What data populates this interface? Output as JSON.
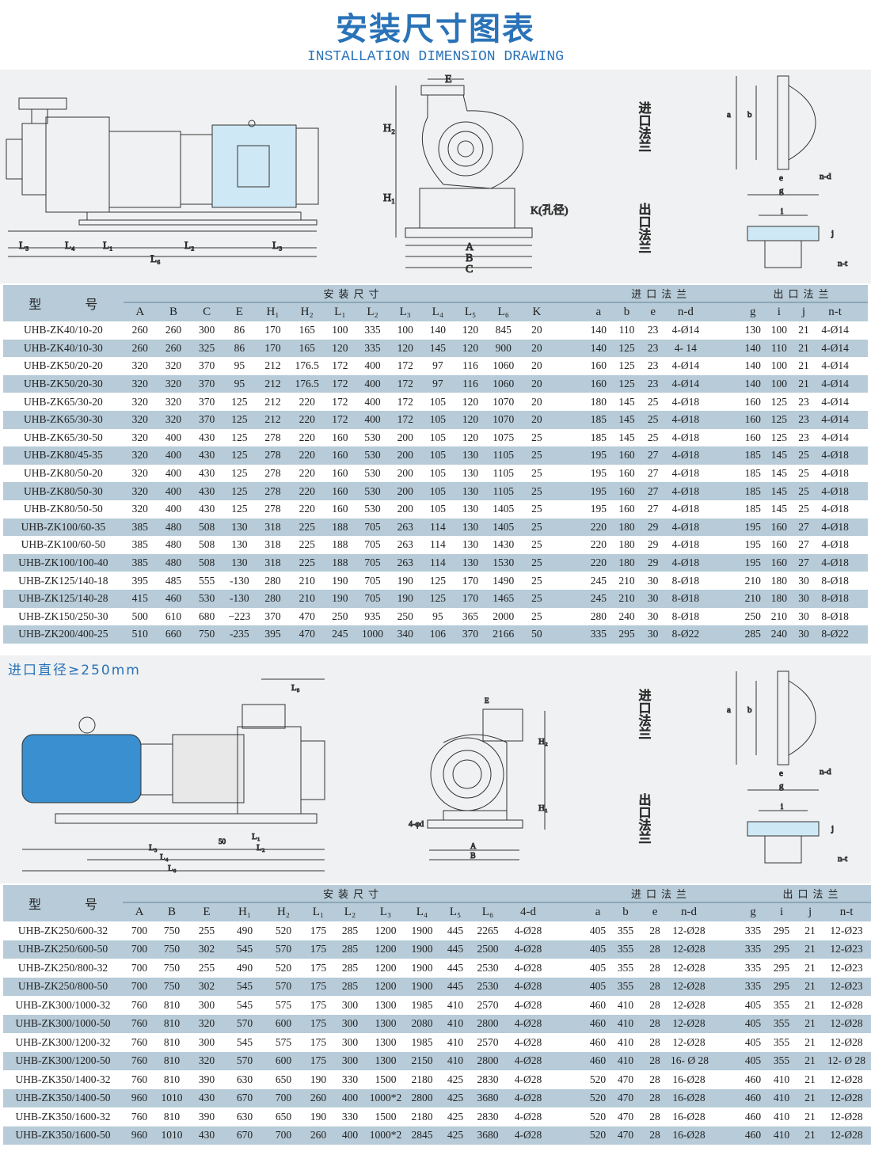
{
  "header": {
    "title": "安装尺寸图表",
    "subtitle": "INSTALLATION DIMENSION DRAWING"
  },
  "drawing1": {
    "labels": {
      "E": "E",
      "H2": "H₂",
      "H1": "H₁",
      "K": "K(孔径)",
      "A": "A",
      "B": "B",
      "C": "C",
      "L5": "L₅",
      "L4": "L₄",
      "L1": "L₁",
      "L2": "L₂",
      "L3": "L₃",
      "L6": "L₆",
      "inlet": "进口法兰",
      "outlet": "出口法兰",
      "a": "a",
      "b": "b",
      "e": "e",
      "nd": "n-d",
      "g": "g",
      "i": "i",
      "j": "j",
      "nt": "n-t"
    }
  },
  "section2_label": "进口直径≥250mm",
  "drawing2": {
    "labels": {
      "L5": "L₅",
      "E": "E",
      "H2": "H₂",
      "H1": "H₁",
      "d": "4-φd",
      "A": "A",
      "B": "B",
      "L1": "L₁",
      "L2": "L₂",
      "L3": "L₃",
      "L4": "L₄",
      "L6": "L₆",
      "h50": "50",
      "inlet": "进口法兰",
      "outlet": "出口法兰",
      "a": "a",
      "b": "b",
      "e": "e",
      "nd": "n-d",
      "g": "g",
      "i": "i",
      "j": "j",
      "nt": "n-t"
    }
  },
  "table1": {
    "model_header": "型 号",
    "install_header": "安装尺寸",
    "inlet_header": "进口法兰",
    "outlet_header": "出口法兰",
    "install_cols": [
      "A",
      "B",
      "C",
      "E",
      "H₁",
      "H₂",
      "L₁",
      "L₂",
      "L₃",
      "L₄",
      "L₅",
      "L₆",
      "K"
    ],
    "inlet_cols": [
      "a",
      "b",
      "e",
      "n-d"
    ],
    "outlet_cols": [
      "g",
      "i",
      "j",
      "n-t"
    ],
    "rows": [
      [
        "UHB-ZK40/10-20",
        "260",
        "260",
        "300",
        "86",
        "170",
        "165",
        "100",
        "335",
        "100",
        "140",
        "120",
        "845",
        "20",
        "140",
        "110",
        "23",
        "4-Ø14",
        "130",
        "100",
        "21",
        "4-Ø14"
      ],
      [
        "UHB-ZK40/10-30",
        "260",
        "260",
        "325",
        "86",
        "170",
        "165",
        "120",
        "335",
        "120",
        "145",
        "120",
        "900",
        "20",
        "140",
        "125",
        "23",
        "4-  14",
        "140",
        "110",
        "21",
        "4-Ø14"
      ],
      [
        "UHB-ZK50/20-20",
        "320",
        "320",
        "370",
        "95",
        "212",
        "176.5",
        "172",
        "400",
        "172",
        "97",
        "116",
        "1060",
        "20",
        "160",
        "125",
        "23",
        "4-Ø14",
        "140",
        "100",
        "21",
        "4-Ø14"
      ],
      [
        "UHB-ZK50/20-30",
        "320",
        "320",
        "370",
        "95",
        "212",
        "176.5",
        "172",
        "400",
        "172",
        "97",
        "116",
        "1060",
        "20",
        "160",
        "125",
        "23",
        "4-Ø14",
        "140",
        "100",
        "21",
        "4-Ø14"
      ],
      [
        "UHB-ZK65/30-20",
        "320",
        "320",
        "370",
        "125",
        "212",
        "220",
        "172",
        "400",
        "172",
        "105",
        "120",
        "1070",
        "20",
        "180",
        "145",
        "25",
        "4-Ø18",
        "160",
        "125",
        "23",
        "4-Ø14"
      ],
      [
        "UHB-ZK65/30-30",
        "320",
        "320",
        "370",
        "125",
        "212",
        "220",
        "172",
        "400",
        "172",
        "105",
        "120",
        "1070",
        "20",
        "185",
        "145",
        "25",
        "4-Ø18",
        "160",
        "125",
        "23",
        "4-Ø14"
      ],
      [
        "UHB-ZK65/30-50",
        "320",
        "400",
        "430",
        "125",
        "278",
        "220",
        "160",
        "530",
        "200",
        "105",
        "120",
        "1075",
        "25",
        "185",
        "145",
        "25",
        "4-Ø18",
        "160",
        "125",
        "23",
        "4-Ø14"
      ],
      [
        "UHB-ZK80/45-35",
        "320",
        "400",
        "430",
        "125",
        "278",
        "220",
        "160",
        "530",
        "200",
        "105",
        "130",
        "1105",
        "25",
        "195",
        "160",
        "27",
        "4-Ø18",
        "185",
        "145",
        "25",
        "4-Ø18"
      ],
      [
        "UHB-ZK80/50-20",
        "320",
        "400",
        "430",
        "125",
        "278",
        "220",
        "160",
        "530",
        "200",
        "105",
        "130",
        "1105",
        "25",
        "195",
        "160",
        "27",
        "4-Ø18",
        "185",
        "145",
        "25",
        "4-Ø18"
      ],
      [
        "UHB-ZK80/50-30",
        "320",
        "400",
        "430",
        "125",
        "278",
        "220",
        "160",
        "530",
        "200",
        "105",
        "130",
        "1105",
        "25",
        "195",
        "160",
        "27",
        "4-Ø18",
        "185",
        "145",
        "25",
        "4-Ø18"
      ],
      [
        "UHB-ZK80/50-50",
        "320",
        "400",
        "430",
        "125",
        "278",
        "220",
        "160",
        "530",
        "200",
        "105",
        "130",
        "1405",
        "25",
        "195",
        "160",
        "27",
        "4-Ø18",
        "185",
        "145",
        "25",
        "4-Ø18"
      ],
      [
        "UHB-ZK100/60-35",
        "385",
        "480",
        "508",
        "130",
        "318",
        "225",
        "188",
        "705",
        "263",
        "114",
        "130",
        "1405",
        "25",
        "220",
        "180",
        "29",
        "4-Ø18",
        "195",
        "160",
        "27",
        "4-Ø18"
      ],
      [
        "UHB-ZK100/60-50",
        "385",
        "480",
        "508",
        "130",
        "318",
        "225",
        "188",
        "705",
        "263",
        "114",
        "130",
        "1430",
        "25",
        "220",
        "180",
        "29",
        "4-Ø18",
        "195",
        "160",
        "27",
        "4-Ø18"
      ],
      [
        "UHB-ZK100/100-40",
        "385",
        "480",
        "508",
        "130",
        "318",
        "225",
        "188",
        "705",
        "263",
        "114",
        "130",
        "1530",
        "25",
        "220",
        "180",
        "29",
        "4-Ø18",
        "195",
        "160",
        "27",
        "4-Ø18"
      ],
      [
        "UHB-ZK125/140-18",
        "395",
        "485",
        "555",
        "-130",
        "280",
        "210",
        "190",
        "705",
        "190",
        "125",
        "170",
        "1490",
        "25",
        "245",
        "210",
        "30",
        "8-Ø18",
        "210",
        "180",
        "30",
        "8-Ø18"
      ],
      [
        "UHB-ZK125/140-28",
        "415",
        "460",
        "530",
        "-130",
        "280",
        "210",
        "190",
        "705",
        "190",
        "125",
        "170",
        "1465",
        "25",
        "245",
        "210",
        "30",
        "8-Ø18",
        "210",
        "180",
        "30",
        "8-Ø18"
      ],
      [
        "UHB-ZK150/250-30",
        "500",
        "610",
        "680",
        "−223",
        "370",
        "470",
        "250",
        "935",
        "250",
        "95",
        "365",
        "2000",
        "25",
        "280",
        "240",
        "30",
        "8-Ø18",
        "250",
        "210",
        "30",
        "8-Ø18"
      ],
      [
        "UHB-ZK200/400-25",
        "510",
        "660",
        "750",
        "-235",
        "395",
        "470",
        "245",
        "1000",
        "340",
        "106",
        "370",
        "2166",
        "50",
        "335",
        "295",
        "30",
        "8-Ø22",
        "285",
        "240",
        "30",
        "8-Ø22"
      ]
    ]
  },
  "table2": {
    "model_header": "型 号",
    "install_header": "安装尺寸",
    "inlet_header": "进口法兰",
    "outlet_header": "出口法兰",
    "install_cols": [
      "A",
      "B",
      "E",
      "H₁",
      "H₂",
      "L₁",
      "L₂",
      "L₃",
      "L₄",
      "L₅",
      "L₆",
      "4-d"
    ],
    "inlet_cols": [
      "a",
      "b",
      "e",
      "n-d"
    ],
    "outlet_cols": [
      "g",
      "i",
      "j",
      "n-t"
    ],
    "rows": [
      [
        "UHB-ZK250/600-32",
        "700",
        "750",
        "255",
        "490",
        "520",
        "175",
        "285",
        "1200",
        "1900",
        "445",
        "2265",
        "4-Ø28",
        "405",
        "355",
        "28",
        "12-Ø28",
        "335",
        "295",
        "21",
        "12-Ø23"
      ],
      [
        "UHB-ZK250/600-50",
        "700",
        "750",
        "302",
        "545",
        "570",
        "175",
        "285",
        "1200",
        "1900",
        "445",
        "2500",
        "4-Ø28",
        "405",
        "355",
        "28",
        "12-Ø28",
        "335",
        "295",
        "21",
        "12-Ø23"
      ],
      [
        "UHB-ZK250/800-32",
        "700",
        "750",
        "255",
        "490",
        "520",
        "175",
        "285",
        "1200",
        "1900",
        "445",
        "2530",
        "4-Ø28",
        "405",
        "355",
        "28",
        "12-Ø28",
        "335",
        "295",
        "21",
        "12-Ø23"
      ],
      [
        "UHB-ZK250/800-50",
        "700",
        "750",
        "302",
        "545",
        "570",
        "175",
        "285",
        "1200",
        "1900",
        "445",
        "2530",
        "4-Ø28",
        "405",
        "355",
        "28",
        "12-Ø28",
        "335",
        "295",
        "21",
        "12-Ø23"
      ],
      [
        "UHB-ZK300/1000-32",
        "760",
        "810",
        "300",
        "545",
        "575",
        "175",
        "300",
        "1300",
        "1985",
        "410",
        "2570",
        "4-Ø28",
        "460",
        "410",
        "28",
        "12-Ø28",
        "405",
        "355",
        "21",
        "12-Ø28"
      ],
      [
        "UHB-ZK300/1000-50",
        "760",
        "810",
        "320",
        "570",
        "600",
        "175",
        "300",
        "1300",
        "2080",
        "410",
        "2800",
        "4-Ø28",
        "460",
        "410",
        "28",
        "12-Ø28",
        "405",
        "355",
        "21",
        "12-Ø28"
      ],
      [
        "UHB-ZK300/1200-32",
        "760",
        "810",
        "300",
        "545",
        "575",
        "175",
        "300",
        "1300",
        "1985",
        "410",
        "2570",
        "4-Ø28",
        "460",
        "410",
        "28",
        "12-Ø28",
        "405",
        "355",
        "21",
        "12-Ø28"
      ],
      [
        "UHB-ZK300/1200-50",
        "760",
        "810",
        "320",
        "570",
        "600",
        "175",
        "300",
        "1300",
        "2150",
        "410",
        "2800",
        "4-Ø28",
        "460",
        "410",
        "28",
        "16- Ø 28",
        "405",
        "355",
        "21",
        "12- Ø 28"
      ],
      [
        "UHB-ZK350/1400-32",
        "760",
        "810",
        "390",
        "630",
        "650",
        "190",
        "330",
        "1500",
        "2180",
        "425",
        "2830",
        "4-Ø28",
        "520",
        "470",
        "28",
        "16-Ø28",
        "460",
        "410",
        "21",
        "12-Ø28"
      ],
      [
        "UHB-ZK350/1400-50",
        "960",
        "1010",
        "430",
        "670",
        "700",
        "260",
        "400",
        "1000*2",
        "2800",
        "425",
        "3680",
        "4-Ø28",
        "520",
        "470",
        "28",
        "16-Ø28",
        "460",
        "410",
        "21",
        "12-Ø28"
      ],
      [
        "UHB-ZK350/1600-32",
        "760",
        "810",
        "390",
        "630",
        "650",
        "190",
        "330",
        "1500",
        "2180",
        "425",
        "2830",
        "4-Ø28",
        "520",
        "470",
        "28",
        "16-Ø28",
        "460",
        "410",
        "21",
        "12-Ø28"
      ],
      [
        "UHB-ZK350/1600-50",
        "960",
        "1010",
        "430",
        "670",
        "700",
        "260",
        "400",
        "1000*2",
        "2845",
        "425",
        "3680",
        "4-Ø28",
        "520",
        "470",
        "28",
        "16-Ø28",
        "460",
        "410",
        "21",
        "12-Ø28"
      ]
    ]
  },
  "colors": {
    "accent": "#2a73b8",
    "row_band": "#b7cbd8",
    "drawing_bg": "#f0f1f2",
    "motor": "#cfe8f5",
    "motor2": "#3a8fd0"
  }
}
